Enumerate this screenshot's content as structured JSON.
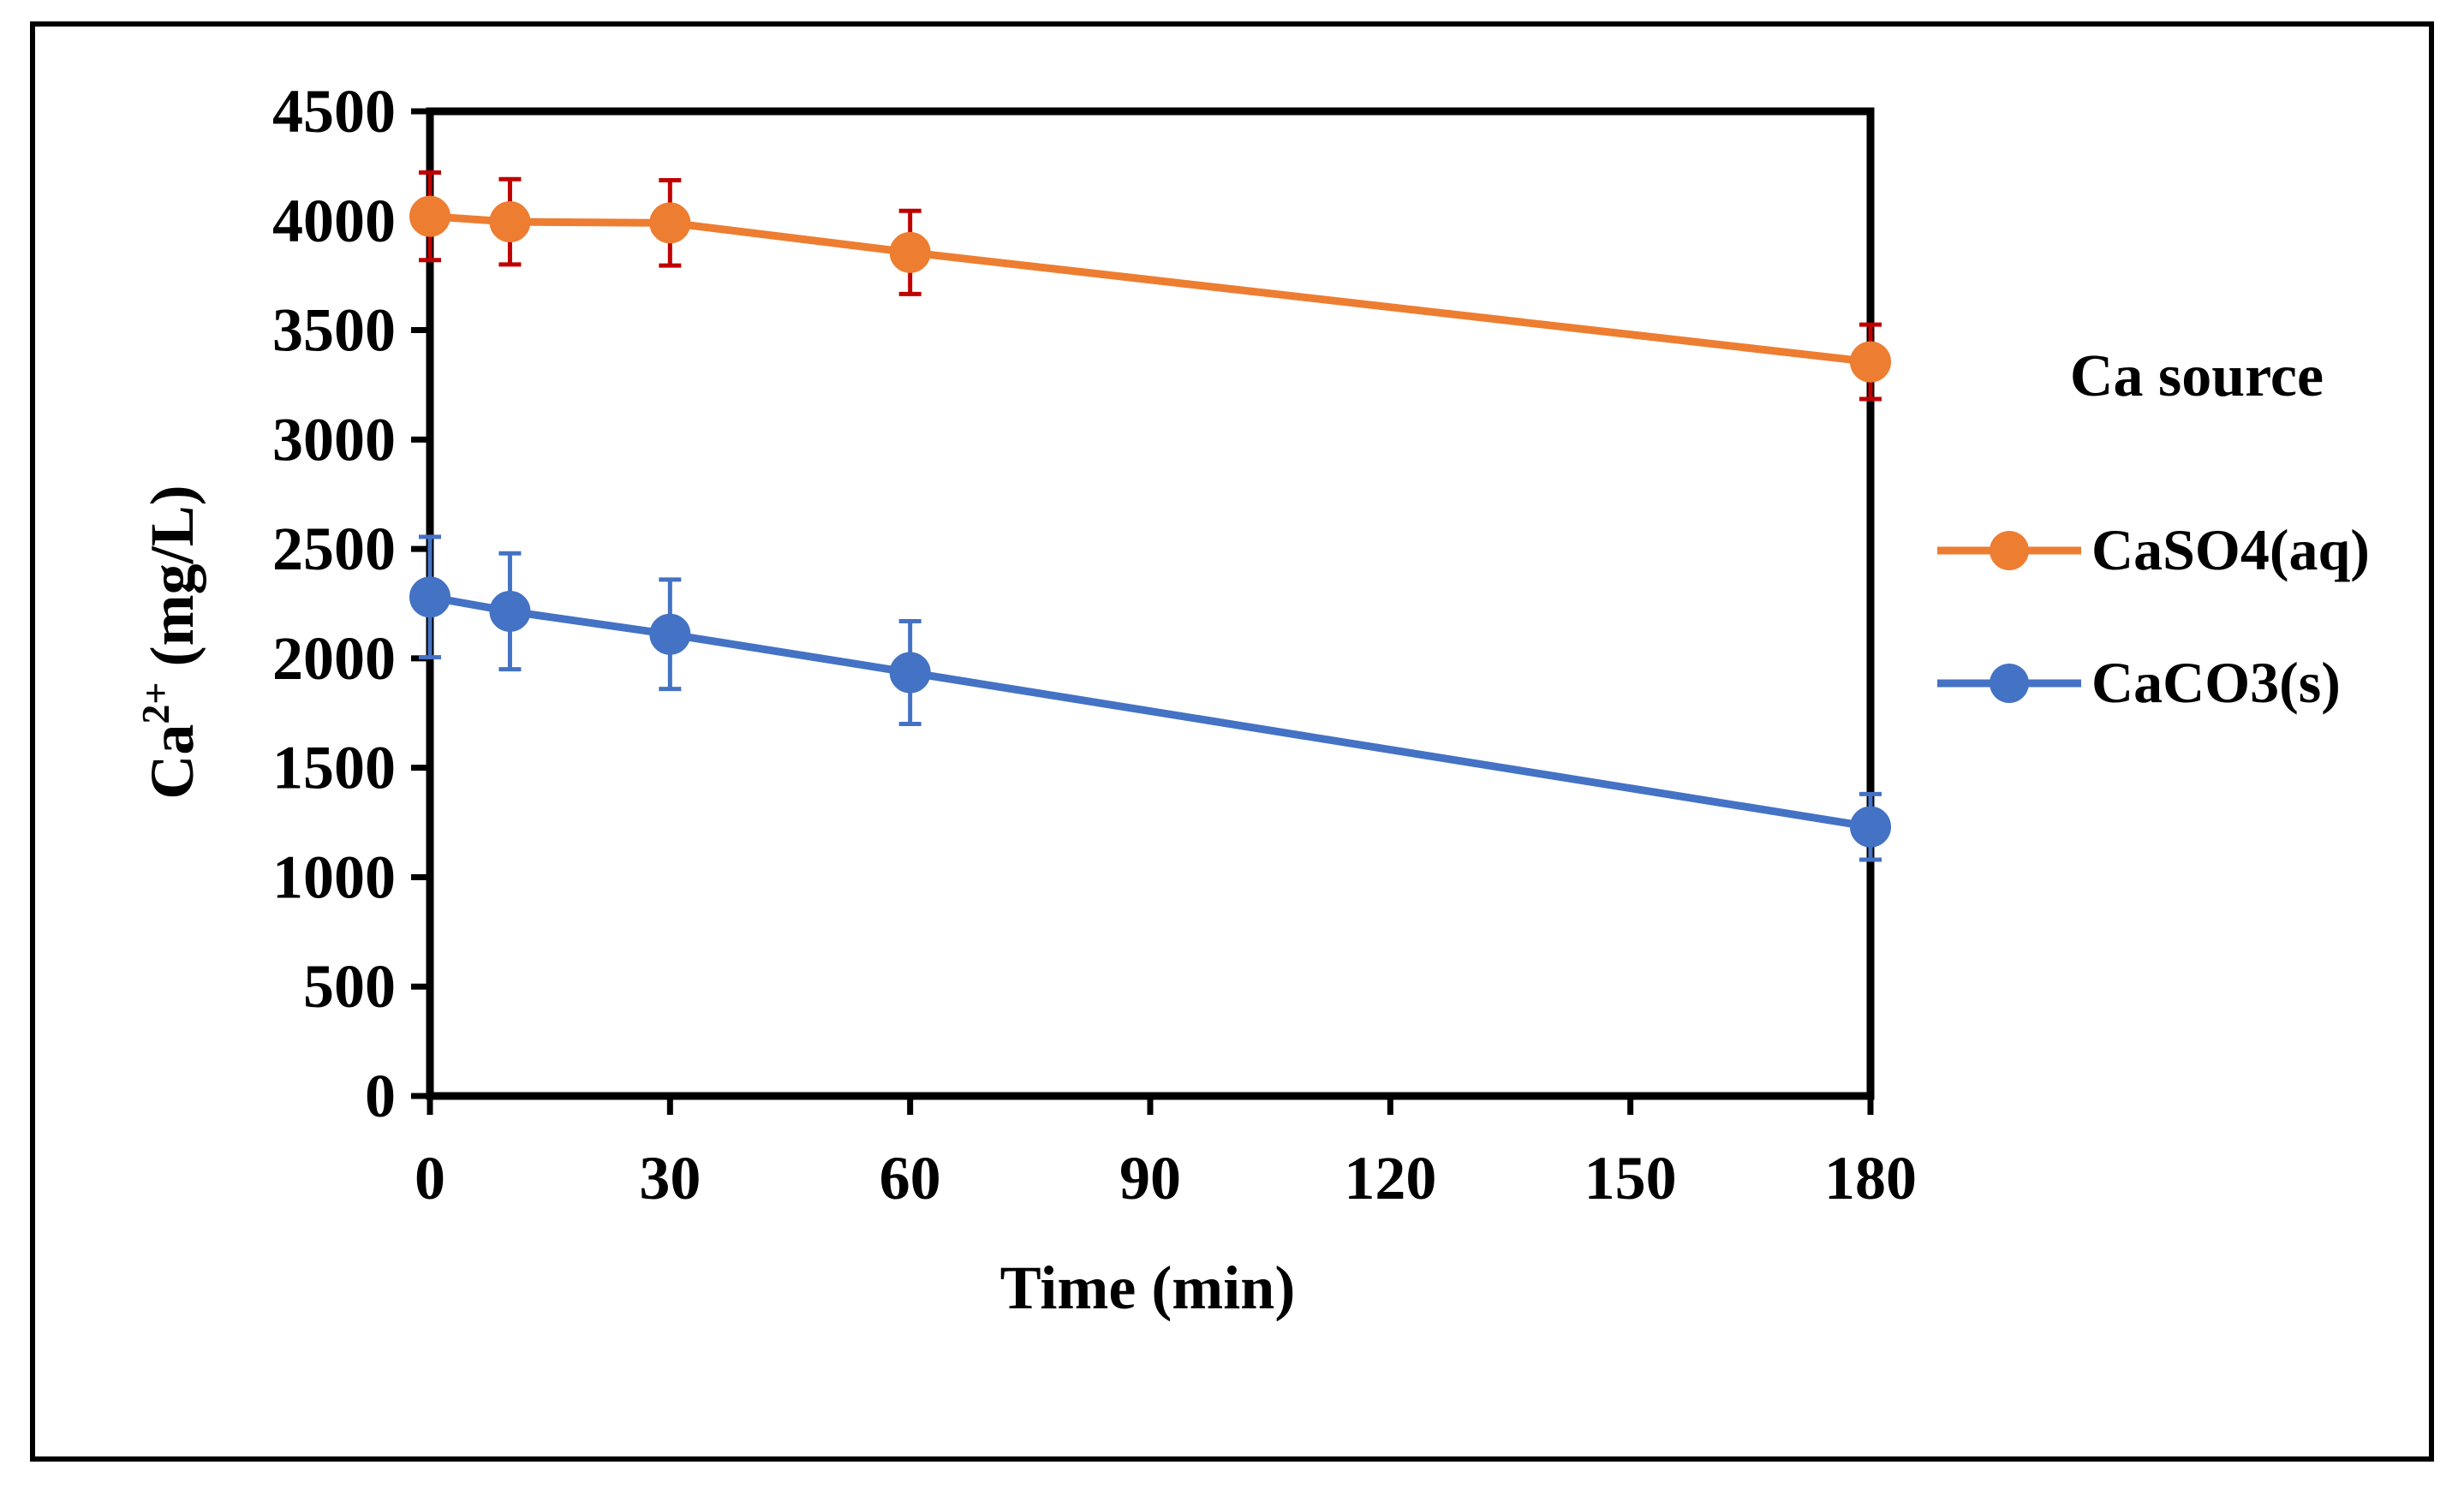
{
  "chart_data": {
    "type": "line",
    "title": "",
    "xlabel": "Time (min)",
    "ylabel_prefix": "Ca",
    "ylabel_sup": "2+",
    "ylabel_suffix": " (mg/L)",
    "xlim": [
      0,
      180
    ],
    "ylim": [
      0,
      4500
    ],
    "x_ticks": [
      0,
      30,
      60,
      90,
      120,
      150,
      180
    ],
    "y_ticks": [
      0,
      500,
      1000,
      1500,
      2000,
      2500,
      3000,
      3500,
      4000,
      4500
    ],
    "legend": {
      "title": "Ca source",
      "position": "right"
    },
    "series": [
      {
        "name": "CaSO4(aq)",
        "color": "#ED7D31",
        "error_color": "#C00000",
        "x": [
          0,
          10,
          30,
          60,
          180
        ],
        "values": [
          4020,
          3995,
          3990,
          3855,
          3355
        ],
        "errors": [
          200,
          195,
          195,
          190,
          170
        ]
      },
      {
        "name": "CaCO3(s)",
        "color": "#4472C4",
        "error_color": "#4472C4",
        "x": [
          0,
          10,
          30,
          60,
          180
        ],
        "values": [
          2280,
          2215,
          2110,
          1935,
          1230
        ],
        "errors": [
          275,
          265,
          250,
          235,
          150
        ]
      }
    ]
  }
}
